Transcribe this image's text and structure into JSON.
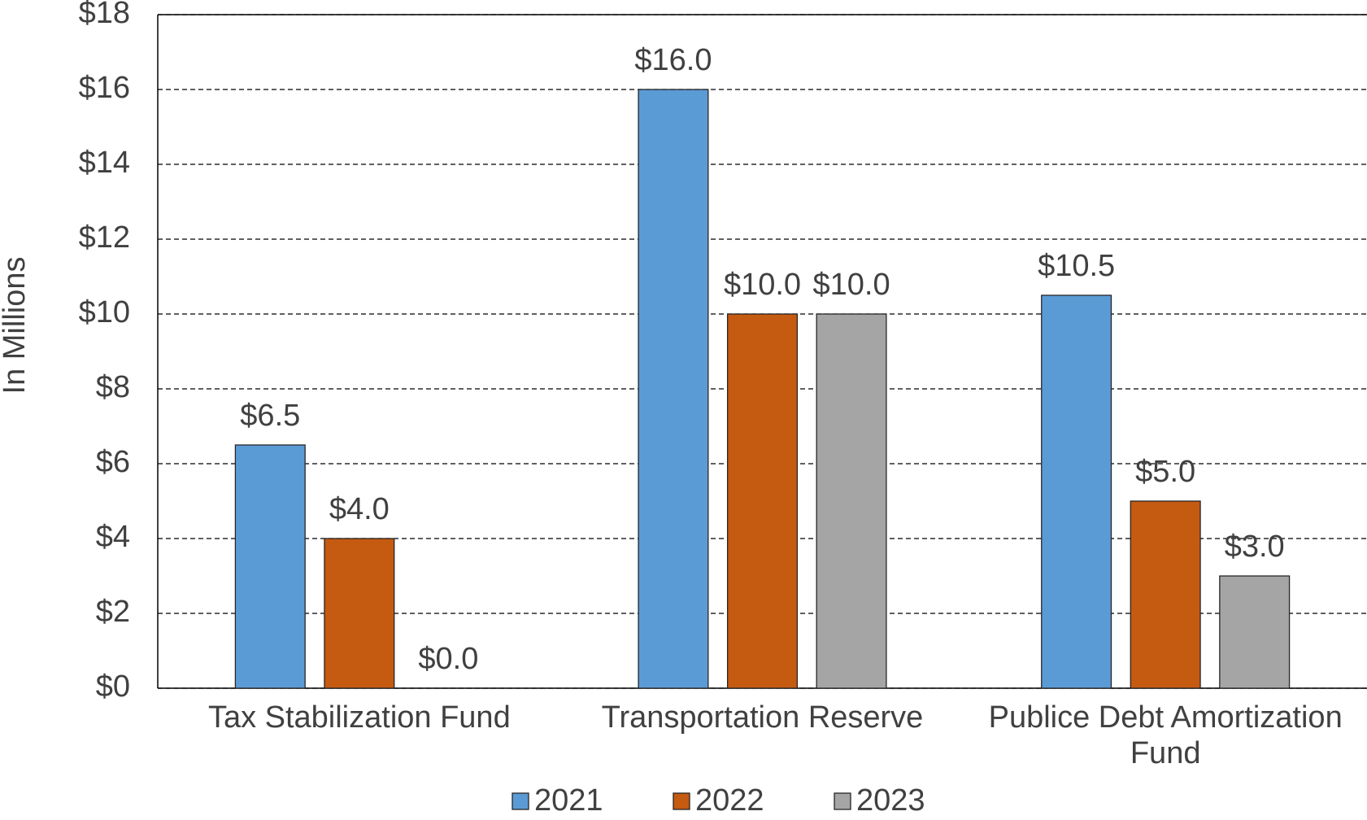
{
  "chart_data": {
    "type": "bar",
    "y_label": "In Millions",
    "categories": [
      "Tax Stabilization Fund",
      "Transportation Reserve",
      "Publice Debt Amortization Fund"
    ],
    "series": [
      {
        "name": "2021",
        "color": "#5b9bd5",
        "values": [
          6.5,
          16.0,
          10.5
        ],
        "value_labels": [
          "$6.5",
          "$16.0",
          "$10.5"
        ]
      },
      {
        "name": "2022",
        "color": "#c55a11",
        "values": [
          4.0,
          10.0,
          5.0
        ],
        "value_labels": [
          "$4.0",
          "$10.0",
          "$5.0"
        ]
      },
      {
        "name": "2023",
        "color": "#a5a5a5",
        "values": [
          0.0,
          10.0,
          3.0
        ],
        "value_labels": [
          "$0.0",
          "$10.0",
          "$3.0"
        ]
      }
    ],
    "ylim": [
      0,
      18
    ],
    "yticks": [
      {
        "value": 0,
        "label": "$0"
      },
      {
        "value": 2,
        "label": "$2"
      },
      {
        "value": 4,
        "label": "$4"
      },
      {
        "value": 6,
        "label": "$6"
      },
      {
        "value": 8,
        "label": "$8"
      },
      {
        "value": 10,
        "label": "$10"
      },
      {
        "value": 12,
        "label": "$12"
      },
      {
        "value": 14,
        "label": "$14"
      },
      {
        "value": 16,
        "label": "$16"
      },
      {
        "value": 18,
        "label": "$18"
      }
    ],
    "grid": true,
    "legend": "bottom"
  }
}
